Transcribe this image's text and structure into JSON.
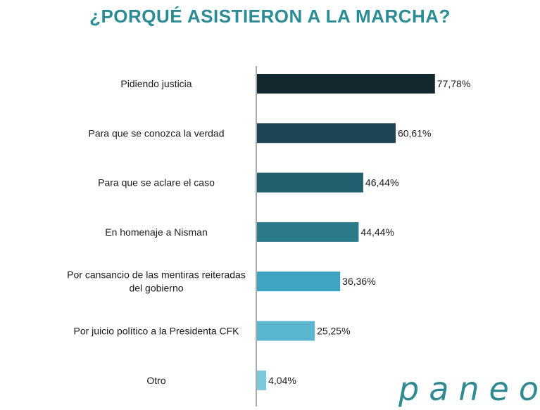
{
  "title": "¿PORQUÉ ASISTIERON A LA MARCHA?",
  "brand": "paneo",
  "colors": {
    "title": "#2c8c95",
    "bars": [
      "#14282f",
      "#1b4552",
      "#23606f",
      "#2b7b8c",
      "#3da5c2",
      "#5ab6cf",
      "#7dc7dd"
    ],
    "axis": "#555555"
  },
  "chart_data": {
    "type": "bar",
    "orientation": "horizontal",
    "categories": [
      [
        "Pidiendo justicia"
      ],
      [
        "Para que se conozca la verdad"
      ],
      [
        "Para que se aclare el caso"
      ],
      [
        "En homenaje a Nisman"
      ],
      [
        "Por cansancio de las mentiras reiteradas",
        "del gobierno"
      ],
      [
        "Por juicio político a la Presidenta CFK"
      ],
      [
        "Otro"
      ]
    ],
    "values": [
      77.78,
      60.61,
      46.44,
      44.44,
      36.36,
      25.25,
      4.04
    ],
    "value_labels": [
      "77,78%",
      "60,61%",
      "46,44%",
      "44,44%",
      "36,36%",
      "25,25%",
      "4,04%"
    ],
    "xlim": [
      0,
      100
    ],
    "unit": "%",
    "grid": false,
    "legend": "none"
  }
}
